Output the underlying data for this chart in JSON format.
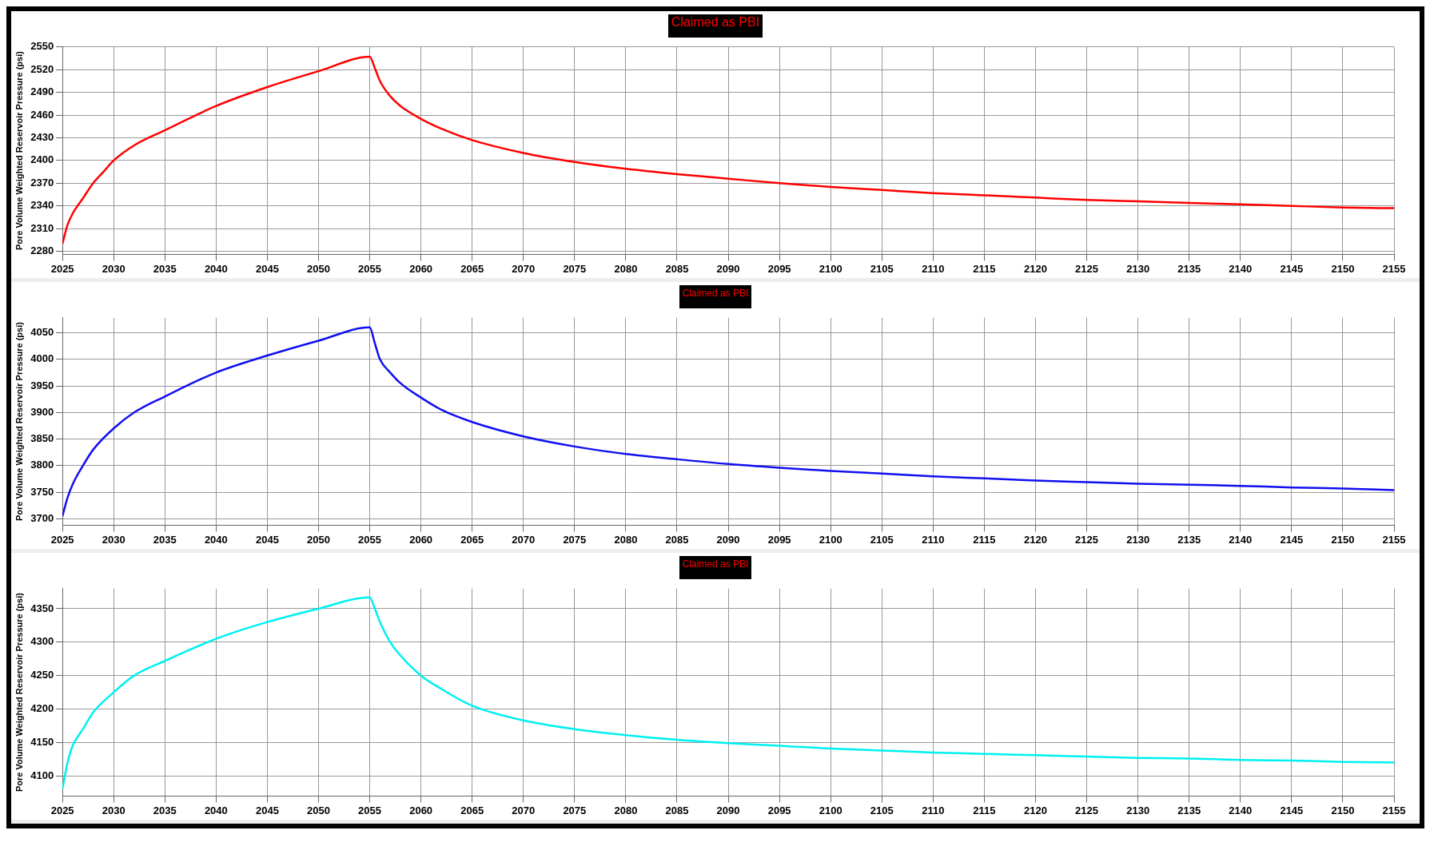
{
  "chart_data": [
    {
      "type": "line",
      "title": "Claimed as PBI",
      "ylabel": "Pore Volume Weighted Reservoir Pressure (psi)",
      "xlim": [
        2025,
        2155
      ],
      "xticks": [
        2025,
        2030,
        2035,
        2040,
        2045,
        2050,
        2055,
        2060,
        2065,
        2070,
        2075,
        2080,
        2085,
        2090,
        2095,
        2100,
        2105,
        2110,
        2115,
        2120,
        2125,
        2130,
        2135,
        2140,
        2145,
        2150,
        2155
      ],
      "ylim": [
        2276,
        2550
      ],
      "yticks": [
        2280,
        2310,
        2340,
        2370,
        2400,
        2430,
        2460,
        2490,
        2520,
        2550
      ],
      "grid": true,
      "legend": false,
      "marker": "none",
      "line_style": "solid",
      "series": [
        {
          "color": "#ff0000",
          "x": [
            2025,
            2025.5,
            2026,
            2027,
            2028,
            2029,
            2030,
            2032,
            2035,
            2040,
            2045,
            2050,
            2055,
            2055.5,
            2056,
            2057,
            2058,
            2060,
            2062,
            2065,
            2070,
            2075,
            2080,
            2085,
            2090,
            2095,
            2100,
            2105,
            2110,
            2115,
            2120,
            2125,
            2130,
            2135,
            2140,
            2145,
            2150,
            2155
          ],
          "values": [
            2290,
            2315,
            2330,
            2350,
            2370,
            2385,
            2400,
            2420,
            2440,
            2472,
            2497,
            2518,
            2537,
            2522,
            2505,
            2485,
            2472,
            2455,
            2442,
            2427,
            2410,
            2398,
            2389,
            2382,
            2376,
            2370,
            2365,
            2361,
            2357,
            2354,
            2351,
            2348,
            2346,
            2344,
            2342,
            2340,
            2338,
            2337
          ]
        }
      ]
    },
    {
      "type": "line",
      "title": "Claimed as PBI",
      "ylabel": "Pore Volume Weighted Reservoir Pressure (psi)",
      "xlim": [
        2025,
        2155
      ],
      "xticks": [
        2025,
        2030,
        2035,
        2040,
        2045,
        2050,
        2055,
        2060,
        2065,
        2070,
        2075,
        2080,
        2085,
        2090,
        2095,
        2100,
        2105,
        2110,
        2115,
        2120,
        2125,
        2130,
        2135,
        2140,
        2145,
        2150,
        2155
      ],
      "ylim": [
        3688,
        4078
      ],
      "yticks": [
        3700,
        3750,
        3800,
        3850,
        3900,
        3950,
        4000,
        4050
      ],
      "grid": true,
      "legend": false,
      "marker": "none",
      "line_style": "solid",
      "series": [
        {
          "color": "#1010f0",
          "x": [
            2025,
            2025.5,
            2026,
            2027,
            2028,
            2030,
            2032,
            2035,
            2040,
            2045,
            2050,
            2055,
            2055.5,
            2056,
            2057,
            2058,
            2060,
            2062,
            2065,
            2070,
            2075,
            2080,
            2085,
            2090,
            2095,
            2100,
            2105,
            2110,
            2115,
            2120,
            2125,
            2130,
            2135,
            2140,
            2145,
            2150,
            2155
          ],
          "values": [
            3705,
            3740,
            3765,
            3800,
            3830,
            3870,
            3900,
            3930,
            3975,
            4007,
            4035,
            4060,
            4030,
            4000,
            3975,
            3955,
            3928,
            3905,
            3882,
            3855,
            3836,
            3822,
            3812,
            3803,
            3796,
            3790,
            3785,
            3780,
            3776,
            3772,
            3769,
            3766,
            3764,
            3762,
            3759,
            3757,
            3754
          ]
        }
      ]
    },
    {
      "type": "line",
      "title": "Claimed as PBI",
      "ylabel": "Pore Volume Weighted Reservoir Pressure (psi)",
      "xlim": [
        2025,
        2155
      ],
      "xticks": [
        2025,
        2030,
        2035,
        2040,
        2045,
        2050,
        2055,
        2060,
        2065,
        2070,
        2075,
        2080,
        2085,
        2090,
        2095,
        2100,
        2105,
        2110,
        2115,
        2120,
        2125,
        2130,
        2135,
        2140,
        2145,
        2150,
        2155
      ],
      "ylim": [
        4070,
        4380
      ],
      "yticks": [
        4100,
        4150,
        4200,
        4250,
        4300,
        4350
      ],
      "grid": true,
      "legend": false,
      "marker": "none",
      "line_style": "solid",
      "series": [
        {
          "color": "#00f0f0",
          "x": [
            2025,
            2025.5,
            2026,
            2027,
            2028,
            2030,
            2032,
            2035,
            2040,
            2045,
            2050,
            2055,
            2055.5,
            2056,
            2057,
            2058,
            2060,
            2062,
            2065,
            2070,
            2075,
            2080,
            2085,
            2090,
            2095,
            2100,
            2105,
            2110,
            2115,
            2120,
            2125,
            2130,
            2135,
            2140,
            2145,
            2150,
            2155
          ],
          "values": [
            4080,
            4120,
            4145,
            4170,
            4195,
            4225,
            4250,
            4272,
            4305,
            4330,
            4350,
            4367,
            4350,
            4330,
            4300,
            4280,
            4250,
            4230,
            4205,
            4183,
            4170,
            4161,
            4154,
            4149,
            4145,
            4141,
            4138,
            4135,
            4133,
            4131,
            4129,
            4127,
            4126,
            4124,
            4123,
            4121,
            4120
          ]
        }
      ]
    }
  ]
}
